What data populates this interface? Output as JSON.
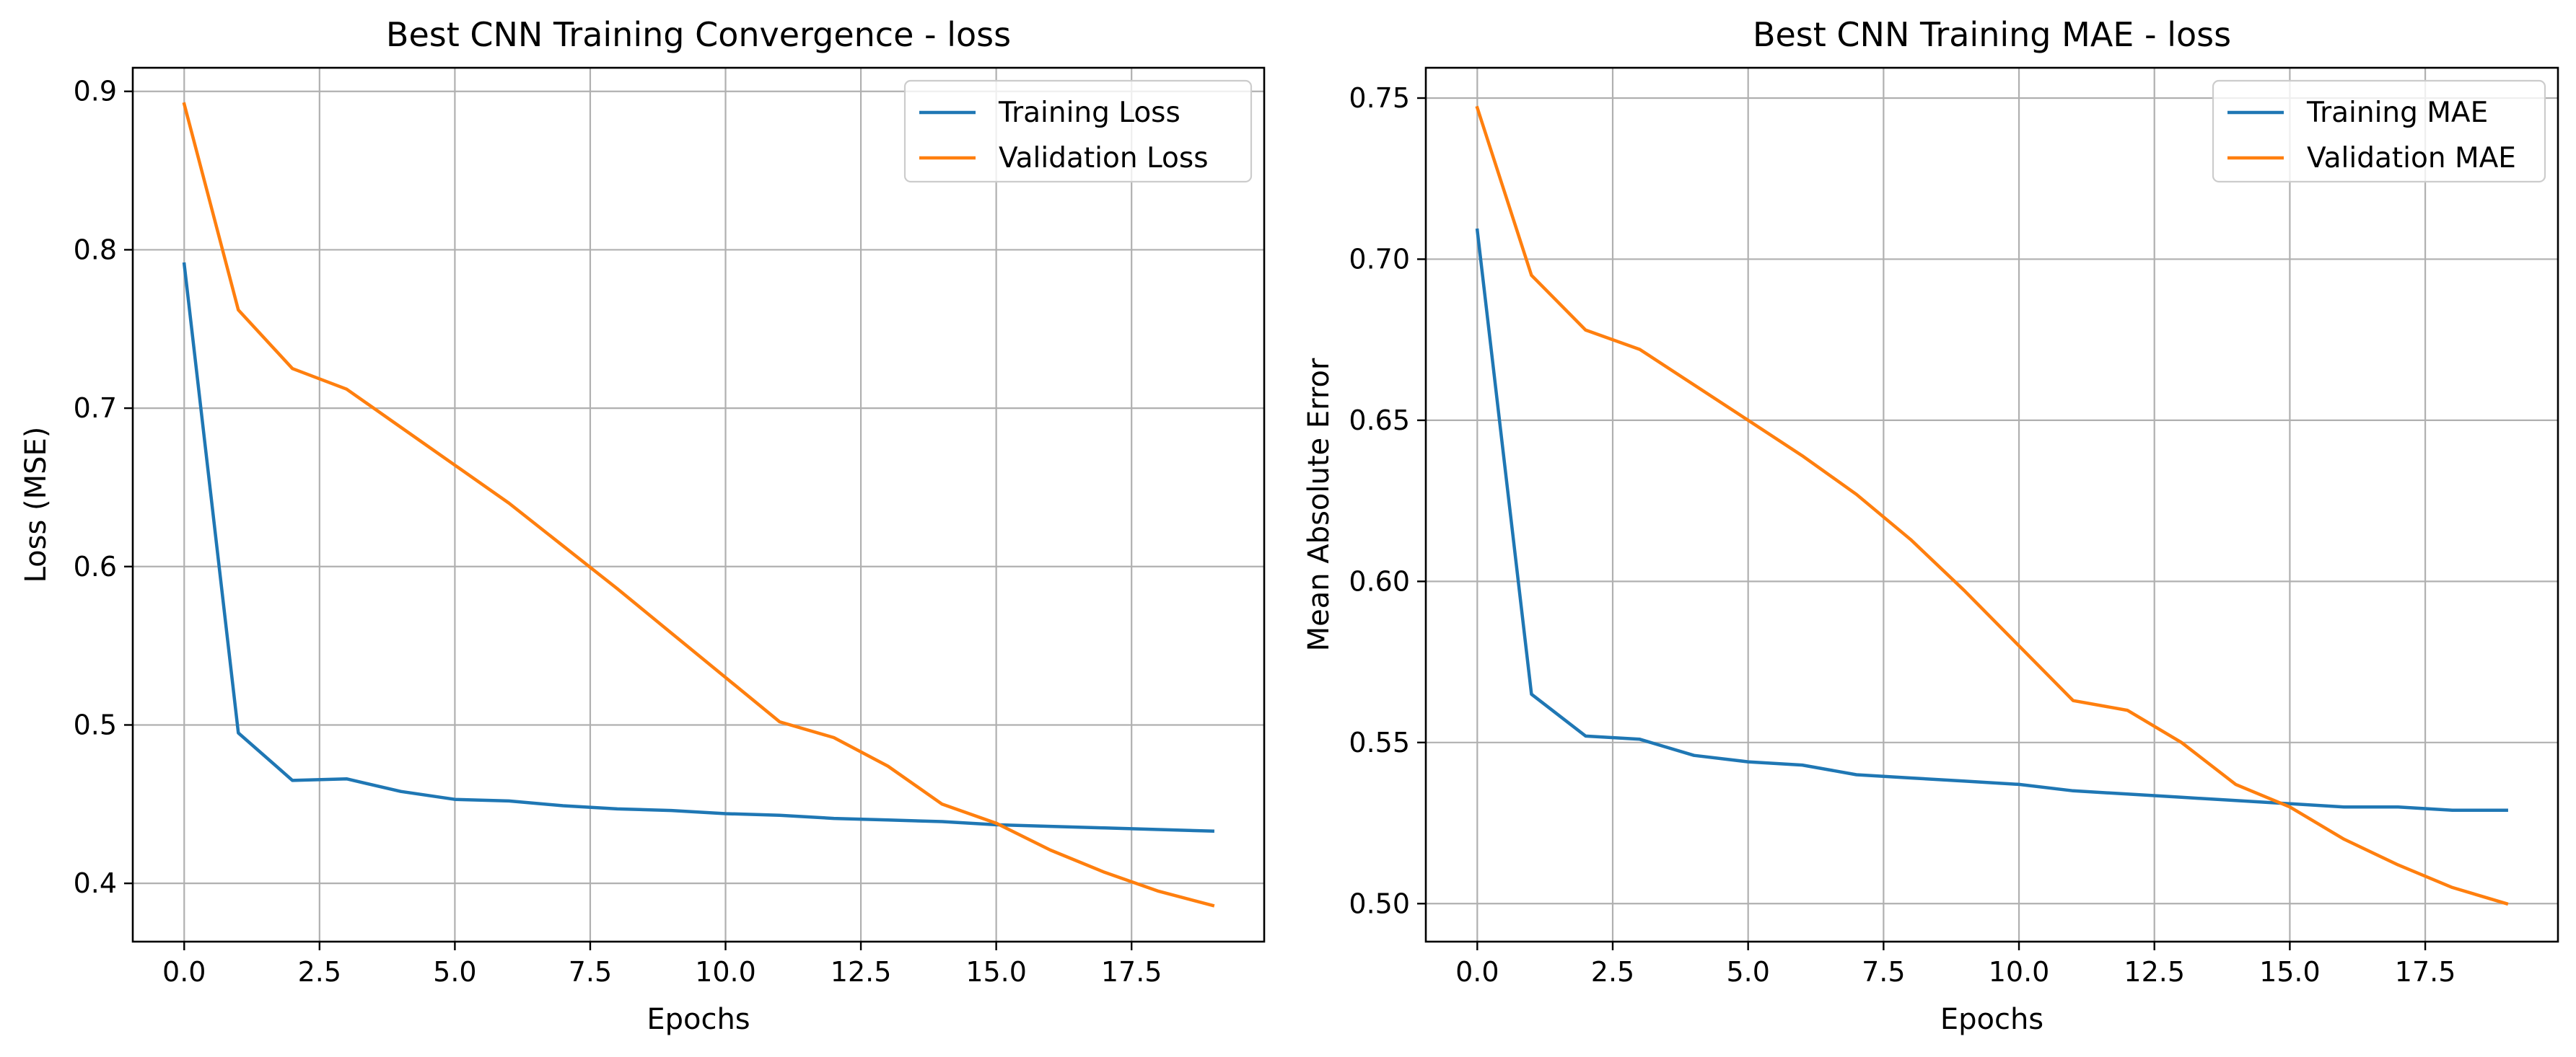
{
  "chart_data": [
    {
      "type": "line",
      "title": "Best CNN Training Convergence - loss",
      "xlabel": "Epochs",
      "ylabel": "Loss (MSE)",
      "x": [
        0,
        1,
        2,
        3,
        4,
        5,
        6,
        7,
        8,
        9,
        10,
        11,
        12,
        13,
        14,
        15,
        16,
        17,
        18,
        19
      ],
      "xlim": [
        -0.95,
        19.95
      ],
      "ylim": [
        0.3632,
        0.9149
      ],
      "xticks": [
        0.0,
        2.5,
        5.0,
        7.5,
        10.0,
        12.5,
        15.0,
        17.5
      ],
      "xtick_labels": [
        "0.0",
        "2.5",
        "5.0",
        "7.5",
        "10.0",
        "12.5",
        "15.0",
        "17.5"
      ],
      "yticks": [
        0.4,
        0.5,
        0.6,
        0.7,
        0.8,
        0.9
      ],
      "ytick_labels": [
        "0.4",
        "0.5",
        "0.6",
        "0.7",
        "0.8",
        "0.9"
      ],
      "grid": true,
      "legend_position": "top-right",
      "series": [
        {
          "name": "Training Loss",
          "color": "#1f77b4",
          "values": [
            0.791,
            0.495,
            0.465,
            0.466,
            0.458,
            0.453,
            0.452,
            0.449,
            0.447,
            0.446,
            0.444,
            0.443,
            0.441,
            0.44,
            0.439,
            0.437,
            0.436,
            0.435,
            0.434,
            0.433
          ]
        },
        {
          "name": "Validation Loss",
          "color": "#ff7f0e",
          "values": [
            0.892,
            0.762,
            0.725,
            0.712,
            0.688,
            0.664,
            0.64,
            0.613,
            0.586,
            0.558,
            0.53,
            0.502,
            0.492,
            0.474,
            0.45,
            0.438,
            0.421,
            0.407,
            0.395,
            0.386
          ]
        }
      ]
    },
    {
      "type": "line",
      "title": "Best CNN Training MAE - loss",
      "xlabel": "Epochs",
      "ylabel": "Mean Absolute Error",
      "x": [
        0,
        1,
        2,
        3,
        4,
        5,
        6,
        7,
        8,
        9,
        10,
        11,
        12,
        13,
        14,
        15,
        16,
        17,
        18,
        19
      ],
      "xlim": [
        -0.95,
        19.95
      ],
      "ylim": [
        0.4882,
        0.7594
      ],
      "xticks": [
        0.0,
        2.5,
        5.0,
        7.5,
        10.0,
        12.5,
        15.0,
        17.5
      ],
      "xtick_labels": [
        "0.0",
        "2.5",
        "5.0",
        "7.5",
        "10.0",
        "12.5",
        "15.0",
        "17.5"
      ],
      "yticks": [
        0.5,
        0.55,
        0.6,
        0.65,
        0.7,
        0.75
      ],
      "ytick_labels": [
        "0.50",
        "0.55",
        "0.60",
        "0.65",
        "0.70",
        "0.75"
      ],
      "grid": true,
      "legend_position": "top-right",
      "series": [
        {
          "name": "Training MAE",
          "color": "#1f77b4",
          "values": [
            0.709,
            0.565,
            0.552,
            0.551,
            0.546,
            0.544,
            0.543,
            0.54,
            0.539,
            0.538,
            0.537,
            0.535,
            0.534,
            0.533,
            0.532,
            0.531,
            0.53,
            0.53,
            0.529,
            0.529
          ]
        },
        {
          "name": "Validation MAE",
          "color": "#ff7f0e",
          "values": [
            0.747,
            0.695,
            0.678,
            0.672,
            0.661,
            0.65,
            0.639,
            0.627,
            0.613,
            0.597,
            0.58,
            0.563,
            0.56,
            0.55,
            0.537,
            0.53,
            0.52,
            0.512,
            0.505,
            0.5
          ]
        }
      ]
    }
  ]
}
